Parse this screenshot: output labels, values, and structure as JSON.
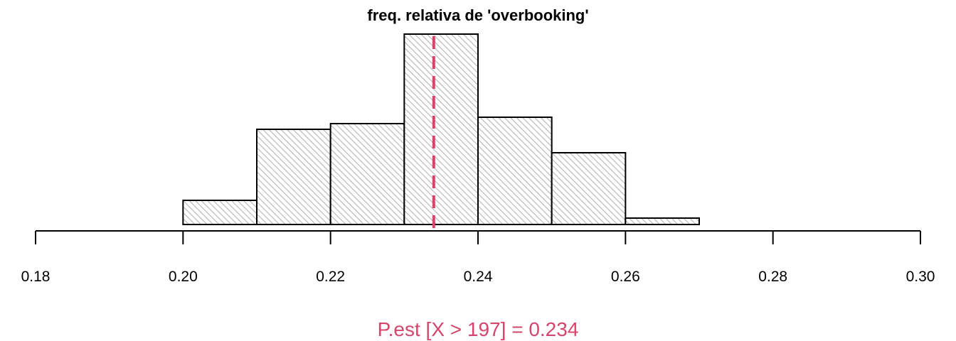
{
  "chart_data": {
    "type": "bar",
    "title": "freq. relativa de 'overbooking'",
    "xlabel": "",
    "ylabel": "",
    "xlim": [
      0.18,
      0.3
    ],
    "x_ticks": [
      0.18,
      0.2,
      0.22,
      0.24,
      0.26,
      0.28,
      0.3
    ],
    "x_tick_labels": [
      "0.18",
      "0.20",
      "0.22",
      "0.24",
      "0.26",
      "0.28",
      "0.30"
    ],
    "bins": [
      {
        "start": 0.2,
        "end": 0.21,
        "value": 0.034
      },
      {
        "start": 0.21,
        "end": 0.22,
        "value": 0.134
      },
      {
        "start": 0.22,
        "end": 0.23,
        "value": 0.142
      },
      {
        "start": 0.23,
        "end": 0.24,
        "value": 0.268
      },
      {
        "start": 0.24,
        "end": 0.25,
        "value": 0.151
      },
      {
        "start": 0.25,
        "end": 0.26,
        "value": 0.101
      },
      {
        "start": 0.26,
        "end": 0.27,
        "value": 0.009
      }
    ],
    "ylim": [
      0,
      0.268
    ],
    "y_axis_shown": false,
    "grid": false,
    "fill": "diagonal-hatch",
    "reference_line": {
      "x": 0.234,
      "style": "dashed",
      "color": "#D6456B"
    },
    "annotation": {
      "text": "P.est [X > 197] = 0.234",
      "color": "#D6456B"
    }
  }
}
